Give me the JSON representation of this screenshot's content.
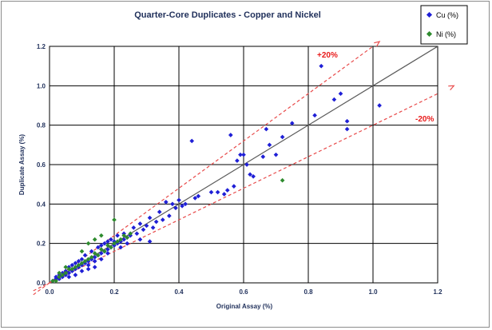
{
  "chart_data": {
    "type": "scatter",
    "title": "Quarter-Core Duplicates - Copper and Nickel",
    "xlabel": "Original Assay (%)",
    "ylabel": "Duplicate Assay (%)",
    "xlim": [
      0,
      1.2
    ],
    "ylim": [
      0,
      1.2
    ],
    "xticks": [
      "0.0",
      "0.2",
      "0.4",
      "0.6",
      "0.8",
      "1.0",
      "1.2"
    ],
    "yticks": [
      "0.0",
      "0.2",
      "0.4",
      "0.6",
      "0.8",
      "1.0",
      "1.2"
    ],
    "grid": true,
    "legend_position": "top-right",
    "reference_lines": [
      {
        "kind": "one-to-one",
        "slope": 1.0,
        "color": "#5a5a5a",
        "style": "solid"
      },
      {
        "kind": "plus-20",
        "slope": 1.2,
        "label": "+20%",
        "color": "#e84a4a",
        "style": "dashed"
      },
      {
        "kind": "minus-20",
        "slope": 0.8,
        "label": "-20%",
        "color": "#e84a4a",
        "style": "dashed"
      }
    ],
    "series": [
      {
        "name": "Cu (%)",
        "color": "#1f1fd6",
        "points": [
          [
            0.01,
            0.01
          ],
          [
            0.02,
            0.02
          ],
          [
            0.02,
            0.03
          ],
          [
            0.03,
            0.02
          ],
          [
            0.03,
            0.04
          ],
          [
            0.04,
            0.03
          ],
          [
            0.04,
            0.05
          ],
          [
            0.05,
            0.04
          ],
          [
            0.05,
            0.06
          ],
          [
            0.06,
            0.05
          ],
          [
            0.06,
            0.08
          ],
          [
            0.07,
            0.06
          ],
          [
            0.07,
            0.09
          ],
          [
            0.08,
            0.07
          ],
          [
            0.08,
            0.1
          ],
          [
            0.09,
            0.08
          ],
          [
            0.09,
            0.11
          ],
          [
            0.1,
            0.09
          ],
          [
            0.1,
            0.12
          ],
          [
            0.11,
            0.1
          ],
          [
            0.11,
            0.14
          ],
          [
            0.12,
            0.11
          ],
          [
            0.12,
            0.09
          ],
          [
            0.13,
            0.12
          ],
          [
            0.13,
            0.16
          ],
          [
            0.14,
            0.13
          ],
          [
            0.14,
            0.11
          ],
          [
            0.15,
            0.14
          ],
          [
            0.15,
            0.18
          ],
          [
            0.16,
            0.15
          ],
          [
            0.16,
            0.12
          ],
          [
            0.17,
            0.16
          ],
          [
            0.17,
            0.2
          ],
          [
            0.18,
            0.17
          ],
          [
            0.18,
            0.15
          ],
          [
            0.19,
            0.18
          ],
          [
            0.19,
            0.22
          ],
          [
            0.2,
            0.19
          ],
          [
            0.2,
            0.21
          ],
          [
            0.21,
            0.2
          ],
          [
            0.21,
            0.24
          ],
          [
            0.22,
            0.21
          ],
          [
            0.22,
            0.18
          ],
          [
            0.23,
            0.22
          ],
          [
            0.23,
            0.25
          ],
          [
            0.24,
            0.23
          ],
          [
            0.24,
            0.2
          ],
          [
            0.25,
            0.24
          ],
          [
            0.26,
            0.28
          ],
          [
            0.27,
            0.25
          ],
          [
            0.28,
            0.3
          ],
          [
            0.29,
            0.27
          ],
          [
            0.3,
            0.29
          ],
          [
            0.31,
            0.33
          ],
          [
            0.32,
            0.28
          ],
          [
            0.33,
            0.31
          ],
          [
            0.34,
            0.36
          ],
          [
            0.35,
            0.32
          ],
          [
            0.36,
            0.41
          ],
          [
            0.37,
            0.34
          ],
          [
            0.38,
            0.4
          ],
          [
            0.39,
            0.38
          ],
          [
            0.4,
            0.42
          ],
          [
            0.41,
            0.39
          ],
          [
            0.42,
            0.4
          ],
          [
            0.44,
            0.72
          ],
          [
            0.45,
            0.43
          ],
          [
            0.46,
            0.44
          ],
          [
            0.5,
            0.46
          ],
          [
            0.52,
            0.46
          ],
          [
            0.54,
            0.45
          ],
          [
            0.55,
            0.47
          ],
          [
            0.56,
            0.75
          ],
          [
            0.57,
            0.49
          ],
          [
            0.58,
            0.62
          ],
          [
            0.59,
            0.65
          ],
          [
            0.6,
            0.65
          ],
          [
            0.61,
            0.6
          ],
          [
            0.62,
            0.55
          ],
          [
            0.63,
            0.54
          ],
          [
            0.66,
            0.64
          ],
          [
            0.67,
            0.78
          ],
          [
            0.68,
            0.7
          ],
          [
            0.7,
            0.65
          ],
          [
            0.72,
            0.74
          ],
          [
            0.75,
            0.81
          ],
          [
            0.82,
            0.85
          ],
          [
            0.84,
            1.1
          ],
          [
            0.88,
            0.93
          ],
          [
            0.9,
            0.96
          ],
          [
            0.92,
            0.82
          ],
          [
            0.92,
            0.78
          ],
          [
            1.02,
            0.9
          ],
          [
            0.06,
            0.03
          ],
          [
            0.08,
            0.04
          ],
          [
            0.1,
            0.06
          ],
          [
            0.12,
            0.07
          ],
          [
            0.14,
            0.08
          ],
          [
            0.16,
            0.19
          ],
          [
            0.18,
            0.21
          ],
          [
            0.28,
            0.22
          ],
          [
            0.31,
            0.21
          ]
        ]
      },
      {
        "name": "Ni (%)",
        "color": "#2e8b2e",
        "points": [
          [
            0.01,
            0.01
          ],
          [
            0.02,
            0.01
          ],
          [
            0.03,
            0.03
          ],
          [
            0.04,
            0.04
          ],
          [
            0.05,
            0.05
          ],
          [
            0.06,
            0.07
          ],
          [
            0.07,
            0.07
          ],
          [
            0.08,
            0.08
          ],
          [
            0.09,
            0.09
          ],
          [
            0.1,
            0.1
          ],
          [
            0.11,
            0.11
          ],
          [
            0.12,
            0.12
          ],
          [
            0.13,
            0.13
          ],
          [
            0.14,
            0.15
          ],
          [
            0.15,
            0.14
          ],
          [
            0.16,
            0.17
          ],
          [
            0.17,
            0.16
          ],
          [
            0.18,
            0.19
          ],
          [
            0.19,
            0.18
          ],
          [
            0.2,
            0.2
          ],
          [
            0.21,
            0.21
          ],
          [
            0.22,
            0.22
          ],
          [
            0.23,
            0.24
          ],
          [
            0.24,
            0.23
          ],
          [
            0.25,
            0.25
          ],
          [
            0.14,
            0.22
          ],
          [
            0.2,
            0.32
          ],
          [
            0.16,
            0.24
          ],
          [
            0.12,
            0.2
          ],
          [
            0.1,
            0.16
          ],
          [
            0.05,
            0.08
          ],
          [
            0.03,
            0.05
          ],
          [
            0.72,
            0.52
          ]
        ]
      }
    ]
  }
}
